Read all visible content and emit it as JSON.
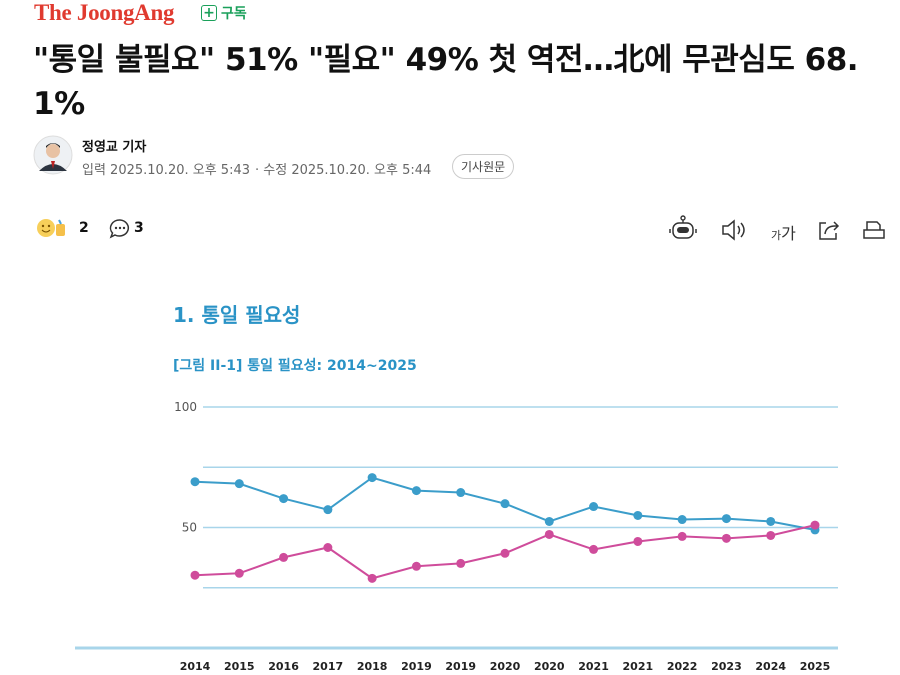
{
  "header": {
    "logo": "The JoongAng",
    "subscribe": "구독"
  },
  "article": {
    "title": "\"통일 불필요\" 51% \"필요\" 49% 첫 역전…北에 무관심도 68.1%",
    "author": "정영교 기자",
    "published": "입력 2025.10.20. 오후 5:43",
    "modified": "· 수정 2025.10.20. 오후 5:44",
    "source_button": "기사원문",
    "reactions": 2,
    "comments": 3,
    "font_toggle": [
      "가",
      "가"
    ]
  },
  "chart_data": {
    "type": "line",
    "title": "1.  통일 필요성",
    "subtitle": "[그림 II-1] 통일 필요성: 2014~2025",
    "categories": [
      "2014",
      "2015",
      "2016",
      "2017",
      "2018",
      "2019",
      "2019",
      "2020",
      "2020",
      "2021",
      "2021",
      "2022",
      "2023",
      "2024",
      "2025"
    ],
    "series": [
      {
        "color": "#3b9dca",
        "values": [
          69.0,
          68.2,
          62.0,
          57.4,
          70.7,
          65.3,
          64.5,
          59.9,
          52.5,
          58.7,
          55.0,
          53.3,
          53.7,
          52.5,
          49
        ]
      },
      {
        "color": "#cf4c9b",
        "values": [
          30.2,
          31.0,
          37.6,
          41.7,
          28.9,
          33.9,
          35.1,
          39.3,
          47.1,
          40.9,
          44.2,
          46.3,
          45.5,
          46.7,
          51
        ]
      }
    ],
    "ylim": [
      0,
      100
    ],
    "yticks": [
      50,
      100
    ],
    "minor_yticks": [
      25,
      75
    ],
    "grid": true
  }
}
